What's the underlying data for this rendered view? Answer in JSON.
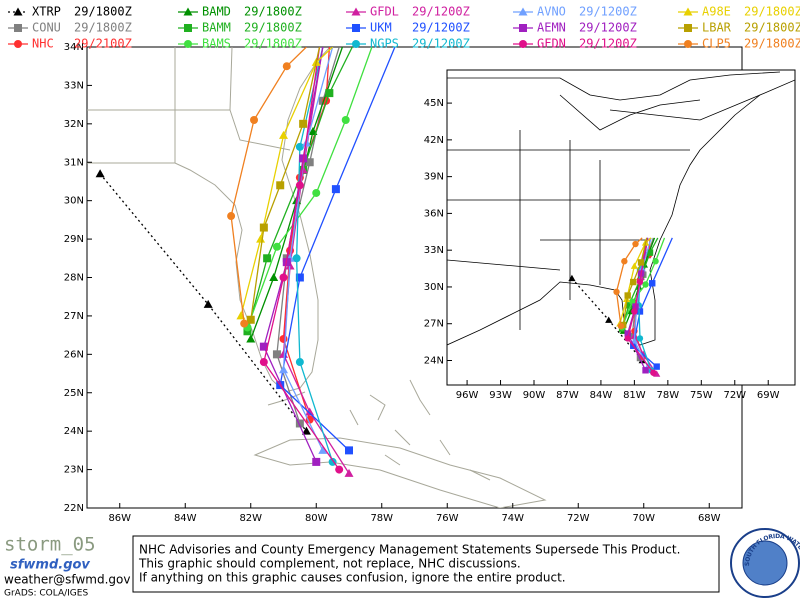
{
  "legend": [
    {
      "name": "XTRP",
      "time": "29/1800Z",
      "color": "#000000",
      "marker": "triangle",
      "line_style": "dotted",
      "track": [
        [
          -86.6,
          30.7
        ],
        [
          -83.3,
          27.3
        ],
        [
          -80.3,
          24.0
        ]
      ]
    },
    {
      "name": "CONU",
      "time": "29/1800Z",
      "color": "#808080",
      "marker": "square",
      "line_style": "solid",
      "track": [
        [
          -80.5,
          24.2
        ],
        [
          -81.2,
          26.0
        ],
        [
          -80.9,
          28.5
        ],
        [
          -80.2,
          31.0
        ],
        [
          -79.8,
          32.6
        ],
        [
          -79.3,
          34.0
        ]
      ]
    },
    {
      "name": "NHC",
      "time": "29/2100Z",
      "color": "#ff3030",
      "marker": "circle",
      "line_style": "solid",
      "track": [
        [
          -80.2,
          24.3
        ],
        [
          -81.0,
          26.4
        ],
        [
          -80.8,
          28.7
        ],
        [
          -80.5,
          30.6
        ],
        [
          -79.7,
          32.6
        ],
        [
          -79.6,
          34.0
        ]
      ]
    },
    {
      "name": "BAMD",
      "time": "29/1800Z",
      "color": "#009000",
      "marker": "triangle",
      "line_style": "solid",
      "track": [
        [
          -82.0,
          26.4
        ],
        [
          -81.3,
          28.0
        ],
        [
          -80.6,
          30.0
        ],
        [
          -80.1,
          31.8
        ],
        [
          -79.2,
          34.0
        ]
      ]
    },
    {
      "name": "BAMM",
      "time": "29/1800Z",
      "color": "#20b020",
      "marker": "square",
      "line_style": "solid",
      "track": [
        [
          -82.1,
          26.6
        ],
        [
          -81.5,
          28.5
        ],
        [
          -80.4,
          30.8
        ],
        [
          -79.6,
          32.8
        ],
        [
          -78.9,
          34.0
        ]
      ]
    },
    {
      "name": "BAMS",
      "time": "29/1800Z",
      "color": "#40e040",
      "marker": "circle",
      "line_style": "solid",
      "track": [
        [
          -82.1,
          26.7
        ],
        [
          -81.2,
          28.8
        ],
        [
          -80.0,
          30.2
        ],
        [
          -79.1,
          32.1
        ],
        [
          -78.3,
          34.0
        ]
      ]
    },
    {
      "name": "GFDL",
      "time": "29/1200Z",
      "color": "#d020a0",
      "marker": "triangle",
      "line_style": "solid",
      "track": [
        [
          -79.0,
          22.9
        ],
        [
          -80.2,
          24.5
        ],
        [
          -81.0,
          26.0
        ],
        [
          -80.8,
          28.3
        ],
        [
          -80.4,
          30.8
        ],
        [
          -79.8,
          34.0
        ]
      ]
    },
    {
      "name": "UKM",
      "time": "29/1200Z",
      "color": "#2050ff",
      "marker": "square",
      "line_style": "solid",
      "track": [
        [
          -79.0,
          23.5
        ],
        [
          -81.1,
          25.2
        ],
        [
          -80.5,
          28.0
        ],
        [
          -79.4,
          30.3
        ],
        [
          -77.6,
          34.0
        ]
      ]
    },
    {
      "name": "NGPS",
      "time": "29/1200Z",
      "color": "#10b8d0",
      "marker": "circle",
      "line_style": "solid",
      "track": [
        [
          -79.5,
          23.2
        ],
        [
          -80.5,
          25.8
        ],
        [
          -80.6,
          28.5
        ],
        [
          -80.5,
          31.4
        ],
        [
          -79.8,
          34.0
        ]
      ]
    },
    {
      "name": "AVNO",
      "time": "29/1200Z",
      "color": "#70a0ff",
      "marker": "triangle",
      "line_style": "solid",
      "track": [
        [
          -79.8,
          23.5
        ],
        [
          -81.0,
          25.6
        ],
        [
          -80.8,
          28.5
        ],
        [
          -80.3,
          31.5
        ],
        [
          -79.5,
          34.0
        ]
      ]
    },
    {
      "name": "AEMN",
      "time": "29/1200Z",
      "color": "#a020c0",
      "marker": "square",
      "line_style": "solid",
      "track": [
        [
          -80.0,
          23.2
        ],
        [
          -81.6,
          26.2
        ],
        [
          -80.9,
          28.4
        ],
        [
          -80.4,
          31.1
        ],
        [
          -79.8,
          34.0
        ]
      ]
    },
    {
      "name": "GFDN",
      "time": "29/1200Z",
      "color": "#e0108a",
      "marker": "circle",
      "line_style": "solid",
      "track": [
        [
          -79.3,
          23.0
        ],
        [
          -81.6,
          25.8
        ],
        [
          -81.0,
          28.0
        ],
        [
          -80.5,
          30.4
        ],
        [
          -79.9,
          34.0
        ]
      ]
    },
    {
      "name": "A98E",
      "time": "29/1800Z",
      "color": "#e8d000",
      "marker": "triangle",
      "line_style": "solid",
      "track": [
        [
          -82.3,
          27.0
        ],
        [
          -81.7,
          29.0
        ],
        [
          -81.0,
          31.7
        ],
        [
          -80.0,
          33.6
        ],
        [
          -79.5,
          34.0
        ]
      ]
    },
    {
      "name": "LBAR",
      "time": "29/1800Z",
      "color": "#b8a000",
      "marker": "square",
      "line_style": "solid",
      "track": [
        [
          -82.0,
          26.9
        ],
        [
          -81.6,
          29.3
        ],
        [
          -81.1,
          30.4
        ],
        [
          -80.4,
          32.0
        ],
        [
          -79.9,
          34.0
        ]
      ]
    },
    {
      "name": "CLP5",
      "time": "29/1800Z",
      "color": "#f08020",
      "marker": "circle",
      "line_style": "solid",
      "track": [
        [
          -82.2,
          26.8
        ],
        [
          -82.6,
          29.6
        ],
        [
          -81.9,
          32.1
        ],
        [
          -80.9,
          33.5
        ],
        [
          -80.3,
          34.0
        ]
      ]
    }
  ],
  "main_map": {
    "xlim": [
      -87,
      -67
    ],
    "ylim": [
      22,
      34
    ],
    "xticks": [
      {
        "value": -86,
        "label": "86W"
      },
      {
        "value": -84,
        "label": "84W"
      },
      {
        "value": -82,
        "label": "82W"
      },
      {
        "value": -80,
        "label": "80W"
      },
      {
        "value": -78,
        "label": "78W"
      },
      {
        "value": -76,
        "label": "76W"
      },
      {
        "value": -74,
        "label": "74W"
      },
      {
        "value": -72,
        "label": "72W"
      },
      {
        "value": -70,
        "label": "70W"
      },
      {
        "value": -68,
        "label": "68W"
      }
    ],
    "yticks": [
      {
        "value": 22,
        "label": "22N"
      },
      {
        "value": 23,
        "label": "23N"
      },
      {
        "value": 24,
        "label": "24N"
      },
      {
        "value": 25,
        "label": "25N"
      },
      {
        "value": 26,
        "label": "26N"
      },
      {
        "value": 27,
        "label": "27N"
      },
      {
        "value": 28,
        "label": "28N"
      },
      {
        "value": 29,
        "label": "29N"
      },
      {
        "value": 30,
        "label": "30N"
      },
      {
        "value": 31,
        "label": "31N"
      },
      {
        "value": 32,
        "label": "32N"
      },
      {
        "value": 33,
        "label": "33N"
      },
      {
        "value": 34,
        "label": "34N"
      }
    ]
  },
  "inset_map": {
    "xlim": [
      -97.8,
      -66.6
    ],
    "ylim": [
      22,
      47.7
    ],
    "xticks": [
      {
        "value": -96,
        "label": "96W"
      },
      {
        "value": -93,
        "label": "93W"
      },
      {
        "value": -90,
        "label": "90W"
      },
      {
        "value": -87,
        "label": "87W"
      },
      {
        "value": -84,
        "label": "84W"
      },
      {
        "value": -81,
        "label": "81W"
      },
      {
        "value": -78,
        "label": "78W"
      },
      {
        "value": -75,
        "label": "75W"
      },
      {
        "value": -72,
        "label": "72W"
      },
      {
        "value": -69,
        "label": "69W"
      }
    ],
    "yticks": [
      {
        "value": 24,
        "label": "24N"
      },
      {
        "value": 27,
        "label": "27N"
      },
      {
        "value": 30,
        "label": "30N"
      },
      {
        "value": 33,
        "label": "33N"
      },
      {
        "value": 36,
        "label": "36N"
      },
      {
        "value": 39,
        "label": "39N"
      },
      {
        "value": 42,
        "label": "42N"
      },
      {
        "value": 45,
        "label": "45N"
      }
    ]
  },
  "footer": {
    "storm": "storm_05",
    "site": "sfwmd.gov",
    "email": "weather@sfwmd.gov",
    "credit": "GrADS: COLA/IGES",
    "disclaimer": [
      "NHC Advisories and County Emergency Management Statements Supersede This Product.",
      "This graphic should complement, not replace, NHC discussions.",
      "If anything on this graphic causes confusion, ignore the entire product."
    ],
    "logo": "SOUTH FLORIDA WATER MANAGEMENT DISTRICT"
  }
}
